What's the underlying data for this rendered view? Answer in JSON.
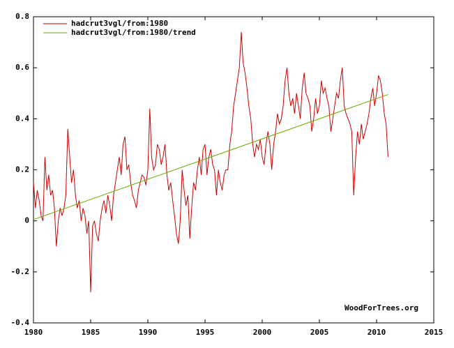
{
  "chart_data": {
    "type": "line",
    "annotation": "WoodForTrees.org",
    "xlim": [
      1980,
      2015
    ],
    "xticks": [
      1980,
      1985,
      1990,
      1995,
      2000,
      2005,
      2010,
      2015
    ],
    "ylim": [
      -0.4,
      0.8
    ],
    "yticks": [
      -0.4,
      -0.2,
      0,
      0.2,
      0.4,
      0.6,
      0.8
    ],
    "legend": "upper left",
    "series": [
      {
        "name": "hadcrut3vgl/from:1980",
        "color": "#cc0000",
        "x": [
          1980,
          1980.17,
          1980.33,
          1980.5,
          1980.67,
          1980.83,
          1981,
          1981.17,
          1981.33,
          1981.5,
          1981.67,
          1981.83,
          1982,
          1982.17,
          1982.33,
          1982.5,
          1982.67,
          1982.83,
          1983,
          1983.17,
          1983.33,
          1983.5,
          1983.67,
          1983.83,
          1984,
          1984.17,
          1984.33,
          1984.5,
          1984.67,
          1984.83,
          1985,
          1985.17,
          1985.33,
          1985.5,
          1985.67,
          1985.83,
          1986,
          1986.17,
          1986.33,
          1986.5,
          1986.67,
          1986.83,
          1987,
          1987.17,
          1987.33,
          1987.5,
          1987.67,
          1987.83,
          1988,
          1988.17,
          1988.33,
          1988.5,
          1988.67,
          1988.83,
          1989,
          1989.17,
          1989.33,
          1989.5,
          1989.67,
          1989.83,
          1990,
          1990.17,
          1990.33,
          1990.5,
          1990.67,
          1990.83,
          1991,
          1991.17,
          1991.33,
          1991.5,
          1991.67,
          1991.83,
          1992,
          1992.17,
          1992.33,
          1992.5,
          1992.67,
          1992.83,
          1993,
          1993.17,
          1993.33,
          1993.5,
          1993.67,
          1993.83,
          1994,
          1994.17,
          1994.33,
          1994.5,
          1994.67,
          1994.83,
          1995,
          1995.17,
          1995.33,
          1995.5,
          1995.67,
          1995.83,
          1996,
          1996.17,
          1996.33,
          1996.5,
          1996.67,
          1996.83,
          1997,
          1997.17,
          1997.33,
          1997.5,
          1997.67,
          1997.83,
          1998,
          1998.17,
          1998.33,
          1998.5,
          1998.67,
          1998.83,
          1999,
          1999.17,
          1999.33,
          1999.5,
          1999.67,
          1999.83,
          2000,
          2000.17,
          2000.33,
          2000.5,
          2000.67,
          2000.83,
          2001,
          2001.17,
          2001.33,
          2001.5,
          2001.67,
          2001.83,
          2002,
          2002.17,
          2002.33,
          2002.5,
          2002.67,
          2002.83,
          2003,
          2003.17,
          2003.33,
          2003.5,
          2003.67,
          2003.83,
          2004,
          2004.17,
          2004.33,
          2004.5,
          2004.67,
          2004.83,
          2005,
          2005.17,
          2005.33,
          2005.5,
          2005.67,
          2005.83,
          2006,
          2006.17,
          2006.33,
          2006.5,
          2006.67,
          2006.83,
          2007,
          2007.17,
          2007.33,
          2007.5,
          2007.67,
          2007.83,
          2008,
          2008.17,
          2008.33,
          2008.5,
          2008.67,
          2008.83,
          2009,
          2009.17,
          2009.33,
          2009.5,
          2009.67,
          2009.83,
          2010,
          2010.17,
          2010.33,
          2010.5,
          2010.67,
          2010.83,
          2011
        ],
        "values": [
          0.15,
          0.05,
          0.12,
          0.08,
          0.02,
          0.0,
          0.25,
          0.12,
          0.18,
          0.1,
          0.12,
          0.05,
          -0.1,
          0.0,
          0.05,
          0.02,
          0.05,
          0.1,
          0.36,
          0.25,
          0.15,
          0.2,
          0.1,
          0.05,
          0.08,
          0.0,
          0.05,
          0.02,
          -0.05,
          0.0,
          -0.28,
          -0.02,
          0.0,
          -0.05,
          -0.08,
          0.0,
          0.05,
          0.08,
          0.03,
          0.1,
          0.06,
          0.0,
          0.1,
          0.15,
          0.2,
          0.25,
          0.18,
          0.3,
          0.33,
          0.2,
          0.22,
          0.15,
          0.1,
          0.08,
          0.05,
          0.12,
          0.15,
          0.18,
          0.17,
          0.14,
          0.2,
          0.44,
          0.25,
          0.2,
          0.22,
          0.3,
          0.28,
          0.22,
          0.25,
          0.3,
          0.18,
          0.12,
          0.15,
          0.08,
          0.02,
          -0.05,
          -0.09,
          0.0,
          0.2,
          0.12,
          0.06,
          0.1,
          -0.07,
          0.05,
          0.15,
          0.12,
          0.2,
          0.25,
          0.18,
          0.28,
          0.3,
          0.18,
          0.25,
          0.28,
          0.22,
          0.2,
          0.1,
          0.2,
          0.15,
          0.12,
          0.18,
          0.2,
          0.2,
          0.3,
          0.35,
          0.45,
          0.5,
          0.55,
          0.6,
          0.74,
          0.62,
          0.58,
          0.52,
          0.45,
          0.4,
          0.3,
          0.25,
          0.3,
          0.28,
          0.32,
          0.25,
          0.22,
          0.3,
          0.35,
          0.3,
          0.2,
          0.3,
          0.35,
          0.42,
          0.38,
          0.4,
          0.45,
          0.55,
          0.6,
          0.5,
          0.45,
          0.48,
          0.42,
          0.5,
          0.45,
          0.4,
          0.52,
          0.58,
          0.5,
          0.48,
          0.45,
          0.35,
          0.4,
          0.48,
          0.42,
          0.45,
          0.55,
          0.5,
          0.52,
          0.48,
          0.45,
          0.35,
          0.4,
          0.45,
          0.5,
          0.48,
          0.55,
          0.6,
          0.45,
          0.42,
          0.4,
          0.38,
          0.35,
          0.1,
          0.25,
          0.35,
          0.3,
          0.38,
          0.32,
          0.35,
          0.38,
          0.42,
          0.48,
          0.52,
          0.45,
          0.5,
          0.57,
          0.55,
          0.5,
          0.42,
          0.38,
          0.25
        ]
      },
      {
        "name": "hadcrut3vgl/from:1980/trend",
        "color": "#66aa00",
        "x": [
          1980,
          2011
        ],
        "values": [
          0.005,
          0.495
        ]
      }
    ]
  }
}
